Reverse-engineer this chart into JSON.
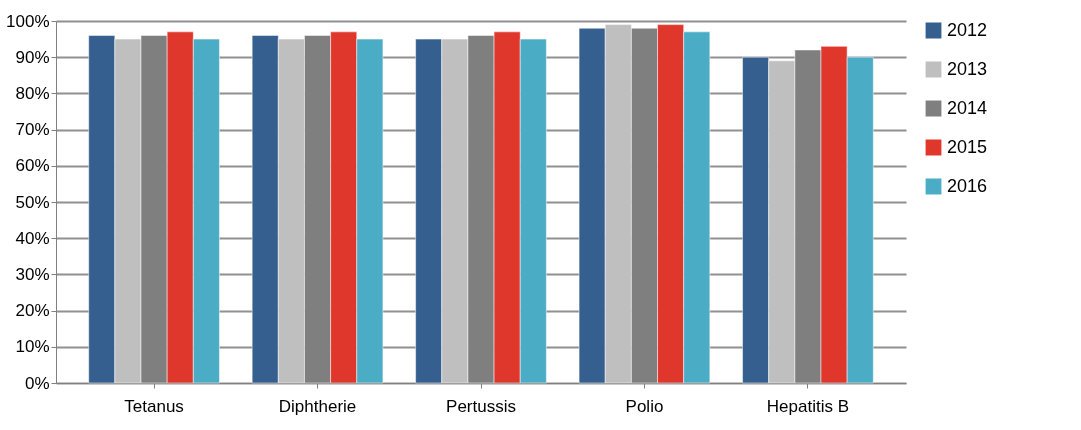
{
  "chart_data": {
    "type": "bar",
    "categories": [
      "Tetanus",
      "Diphtherie",
      "Pertussis",
      "Polio",
      "Hepatitis B"
    ],
    "series": [
      {
        "name": "2012",
        "color": "#355f8f",
        "values": [
          96,
          96,
          95,
          98,
          90
        ]
      },
      {
        "name": "2013",
        "color": "#bfbfbf",
        "values": [
          95,
          95,
          95,
          99,
          89
        ]
      },
      {
        "name": "2014",
        "color": "#7f7f7f",
        "values": [
          96,
          96,
          96,
          98,
          92
        ]
      },
      {
        "name": "2015",
        "color": "#e0372c",
        "values": [
          97,
          97,
          97,
          99,
          93
        ]
      },
      {
        "name": "2016",
        "color": "#4bacc6",
        "values": [
          95,
          95,
          95,
          97,
          90
        ]
      }
    ],
    "ylim": [
      0,
      100
    ],
    "yticks": [
      {
        "value": 0,
        "label": "0%"
      },
      {
        "value": 10,
        "label": "10%"
      },
      {
        "value": 20,
        "label": "20%"
      },
      {
        "value": 30,
        "label": "30%"
      },
      {
        "value": 40,
        "label": "40%"
      },
      {
        "value": 50,
        "label": "50%"
      },
      {
        "value": 60,
        "label": "60%"
      },
      {
        "value": 70,
        "label": "70%"
      },
      {
        "value": 80,
        "label": "80%"
      },
      {
        "value": 90,
        "label": "90%"
      },
      {
        "value": 100,
        "label": "100%"
      }
    ],
    "grid": "y",
    "legend": "right"
  }
}
